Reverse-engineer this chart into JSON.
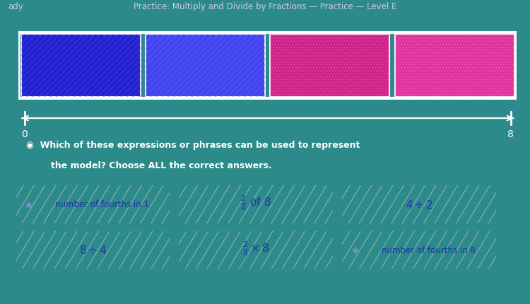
{
  "bg_color": "#2d8a8a",
  "header_bg": "#1e2a3a",
  "header_text_color": "#ccccdd",
  "title_text": "Practice: Multiply and Divide by Fractions — Practice — Level E",
  "left_label": "ady",
  "seg_colors": [
    "#2222cc",
    "#4444ee",
    "#cc2288",
    "#dd3399"
  ],
  "seg_hatch_colors": [
    "#4444ff",
    "#5566ff",
    "#ff55bb",
    "#ff66cc"
  ],
  "seg_hatches": [
    "////",
    "////",
    "....",
    "...."
  ],
  "bar_outline_color": "#ffffff",
  "number_line_color": "#ffffff",
  "tick_labels": [
    "0",
    "8"
  ],
  "question_line1": "◉  Which of these expressions or phrases can be used to represent",
  "question_line2": "    the model? Choose ALL the correct answers.",
  "answer_box_bg": "#f0ece0",
  "answer_text_color": "#2233aa",
  "speaker_color": "#7799cc"
}
